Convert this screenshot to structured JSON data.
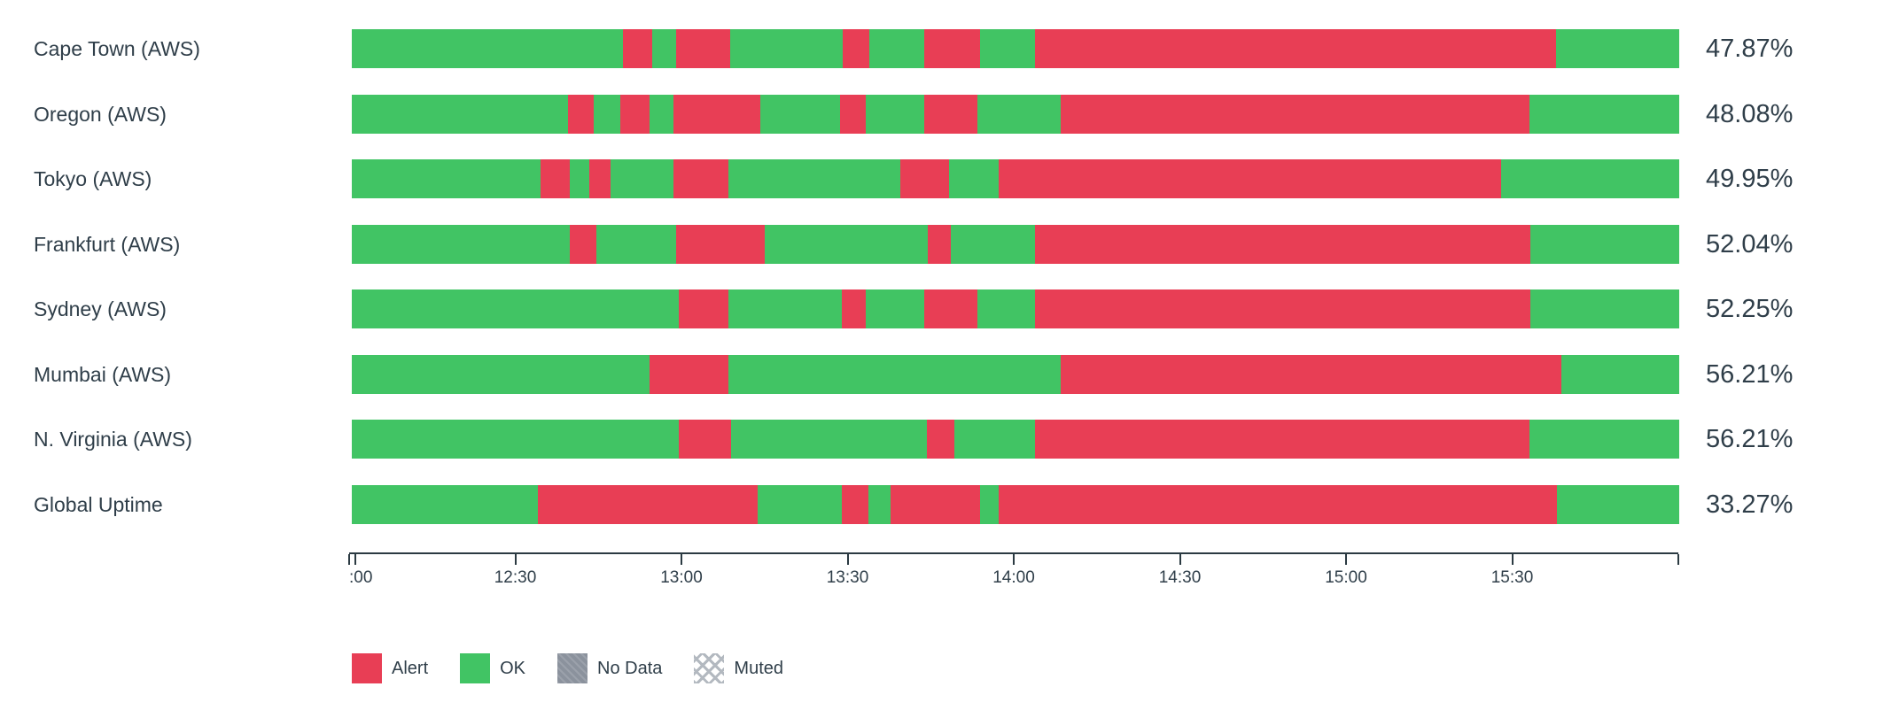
{
  "colors": {
    "ok": "#41c464",
    "alert": "#e83e55",
    "no_data": "#8b929d",
    "muted_line": "#b3b9c0",
    "text": "#2f3e49",
    "axis": "#2b3a42"
  },
  "chart_data": {
    "type": "bar",
    "subtype": "horizontal-status-timeline",
    "title": "",
    "xlabel": "",
    "ylabel": "",
    "x_range": [
      "12:00",
      "16:00"
    ],
    "grid": false,
    "legend_position": "bottom-left",
    "x_axis": {
      "ticks": [
        {
          "label": ":00",
          "pos": 0,
          "align": "left"
        },
        {
          "label": "",
          "pos": 0.45,
          "align": "center"
        },
        {
          "label": "12:30",
          "pos": 12.5,
          "align": "center"
        },
        {
          "label": "13:00",
          "pos": 25,
          "align": "center"
        },
        {
          "label": "13:30",
          "pos": 37.5,
          "align": "center"
        },
        {
          "label": "14:00",
          "pos": 50,
          "align": "center"
        },
        {
          "label": "14:30",
          "pos": 62.5,
          "align": "center"
        },
        {
          "label": "15:00",
          "pos": 75,
          "align": "center"
        },
        {
          "label": "15:30",
          "pos": 87.5,
          "align": "center"
        },
        {
          "label": "",
          "pos": 100,
          "align": "center"
        }
      ]
    },
    "rows": [
      {
        "label": "Cape Town (AWS)",
        "uptime": "47.87%",
        "segments": [
          {
            "status": "ok",
            "start": 0,
            "end": 20.4
          },
          {
            "status": "alert",
            "start": 20.4,
            "end": 22.6
          },
          {
            "status": "ok",
            "start": 22.6,
            "end": 24.4
          },
          {
            "status": "alert",
            "start": 24.4,
            "end": 28.5
          },
          {
            "status": "ok",
            "start": 28.5,
            "end": 37.0
          },
          {
            "status": "alert",
            "start": 37.0,
            "end": 39.0
          },
          {
            "status": "ok",
            "start": 39.0,
            "end": 43.1
          },
          {
            "status": "alert",
            "start": 43.1,
            "end": 47.3
          },
          {
            "status": "ok",
            "start": 47.3,
            "end": 51.5
          },
          {
            "status": "alert",
            "start": 51.5,
            "end": 90.7
          },
          {
            "status": "ok",
            "start": 90.7,
            "end": 100
          }
        ]
      },
      {
        "label": "Oregon (AWS)",
        "uptime": "48.08%",
        "segments": [
          {
            "status": "ok",
            "start": 0,
            "end": 16.3
          },
          {
            "status": "alert",
            "start": 16.3,
            "end": 18.2
          },
          {
            "status": "ok",
            "start": 18.2,
            "end": 20.2
          },
          {
            "status": "alert",
            "start": 20.2,
            "end": 22.4
          },
          {
            "status": "ok",
            "start": 22.4,
            "end": 24.2
          },
          {
            "status": "alert",
            "start": 24.2,
            "end": 30.8
          },
          {
            "status": "ok",
            "start": 30.8,
            "end": 36.8
          },
          {
            "status": "alert",
            "start": 36.8,
            "end": 38.7
          },
          {
            "status": "ok",
            "start": 38.7,
            "end": 43.1
          },
          {
            "status": "alert",
            "start": 43.1,
            "end": 47.1
          },
          {
            "status": "ok",
            "start": 47.1,
            "end": 53.4
          },
          {
            "status": "alert",
            "start": 53.4,
            "end": 88.7
          },
          {
            "status": "ok",
            "start": 88.7,
            "end": 100
          }
        ]
      },
      {
        "label": "Tokyo (AWS)",
        "uptime": "49.95%",
        "segments": [
          {
            "status": "ok",
            "start": 0,
            "end": 14.2
          },
          {
            "status": "alert",
            "start": 14.2,
            "end": 16.4
          },
          {
            "status": "ok",
            "start": 16.4,
            "end": 17.9
          },
          {
            "status": "alert",
            "start": 17.9,
            "end": 19.5
          },
          {
            "status": "ok",
            "start": 19.5,
            "end": 24.2
          },
          {
            "status": "alert",
            "start": 24.2,
            "end": 28.4
          },
          {
            "status": "ok",
            "start": 28.4,
            "end": 41.3
          },
          {
            "status": "alert",
            "start": 41.3,
            "end": 45.0
          },
          {
            "status": "ok",
            "start": 45.0,
            "end": 48.7
          },
          {
            "status": "alert",
            "start": 48.7,
            "end": 86.6
          },
          {
            "status": "ok",
            "start": 86.6,
            "end": 100
          }
        ]
      },
      {
        "label": "Frankfurt (AWS)",
        "uptime": "52.04%",
        "segments": [
          {
            "status": "ok",
            "start": 0,
            "end": 16.4
          },
          {
            "status": "alert",
            "start": 16.4,
            "end": 18.4
          },
          {
            "status": "ok",
            "start": 18.4,
            "end": 24.4
          },
          {
            "status": "alert",
            "start": 24.4,
            "end": 31.1
          },
          {
            "status": "ok",
            "start": 31.1,
            "end": 43.4
          },
          {
            "status": "alert",
            "start": 43.4,
            "end": 45.1
          },
          {
            "status": "ok",
            "start": 45.1,
            "end": 51.5
          },
          {
            "status": "alert",
            "start": 51.5,
            "end": 88.8
          },
          {
            "status": "ok",
            "start": 88.8,
            "end": 100
          }
        ]
      },
      {
        "label": "Sydney (AWS)",
        "uptime": "52.25%",
        "segments": [
          {
            "status": "ok",
            "start": 0,
            "end": 24.6
          },
          {
            "status": "alert",
            "start": 24.6,
            "end": 28.4
          },
          {
            "status": "ok",
            "start": 28.4,
            "end": 36.9
          },
          {
            "status": "alert",
            "start": 36.9,
            "end": 38.7
          },
          {
            "status": "ok",
            "start": 38.7,
            "end": 43.1
          },
          {
            "status": "alert",
            "start": 43.1,
            "end": 47.1
          },
          {
            "status": "ok",
            "start": 47.1,
            "end": 51.5
          },
          {
            "status": "alert",
            "start": 51.5,
            "end": 88.8
          },
          {
            "status": "ok",
            "start": 88.8,
            "end": 100
          }
        ]
      },
      {
        "label": "Mumbai (AWS)",
        "uptime": "56.21%",
        "segments": [
          {
            "status": "ok",
            "start": 0,
            "end": 22.4
          },
          {
            "status": "alert",
            "start": 22.4,
            "end": 28.4
          },
          {
            "status": "ok",
            "start": 28.4,
            "end": 53.4
          },
          {
            "status": "alert",
            "start": 53.4,
            "end": 91.1
          },
          {
            "status": "ok",
            "start": 91.1,
            "end": 100
          }
        ]
      },
      {
        "label": "N. Virginia (AWS)",
        "uptime": "56.21%",
        "segments": [
          {
            "status": "ok",
            "start": 0,
            "end": 24.6
          },
          {
            "status": "alert",
            "start": 24.6,
            "end": 28.6
          },
          {
            "status": "ok",
            "start": 28.6,
            "end": 43.3
          },
          {
            "status": "alert",
            "start": 43.3,
            "end": 45.4
          },
          {
            "status": "ok",
            "start": 45.4,
            "end": 51.5
          },
          {
            "status": "alert",
            "start": 51.5,
            "end": 88.7
          },
          {
            "status": "ok",
            "start": 88.7,
            "end": 100
          }
        ]
      },
      {
        "label": "Global Uptime",
        "uptime": "33.27%",
        "segments": [
          {
            "status": "ok",
            "start": 0,
            "end": 14.0
          },
          {
            "status": "alert",
            "start": 14.0,
            "end": 30.6
          },
          {
            "status": "ok",
            "start": 30.6,
            "end": 36.9
          },
          {
            "status": "alert",
            "start": 36.9,
            "end": 38.9
          },
          {
            "status": "ok",
            "start": 38.9,
            "end": 40.6
          },
          {
            "status": "alert",
            "start": 40.6,
            "end": 47.3
          },
          {
            "status": "ok",
            "start": 47.3,
            "end": 48.7
          },
          {
            "status": "alert",
            "start": 48.7,
            "end": 90.8
          },
          {
            "status": "ok",
            "start": 90.8,
            "end": 100
          }
        ]
      }
    ]
  },
  "legend": {
    "items": [
      {
        "key": "alert",
        "label": "Alert"
      },
      {
        "key": "ok",
        "label": "OK"
      },
      {
        "key": "nodata",
        "label": "No Data"
      },
      {
        "key": "muted",
        "label": "Muted"
      }
    ]
  }
}
